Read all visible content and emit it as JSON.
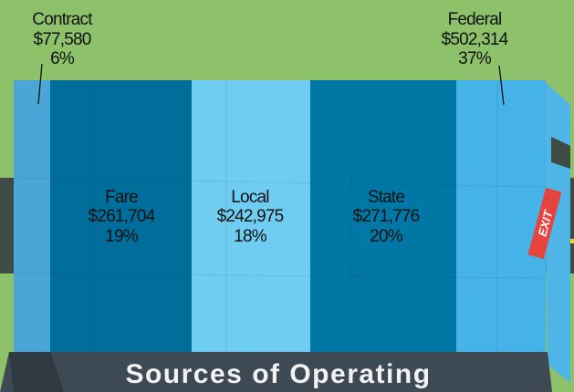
{
  "title": "Sources of Operating",
  "exit_sign": "EXIT",
  "segments": [
    {
      "label": "Contract",
      "amount": "$77,580",
      "percent": "6%"
    },
    {
      "label": "Fare",
      "amount": "$261,704",
      "percent": "19%"
    },
    {
      "label": "Local",
      "amount": "$242,975",
      "percent": "18%"
    },
    {
      "label": "State",
      "amount": "$271,776",
      "percent": "20%"
    },
    {
      "label": "Federal",
      "amount": "$502,314",
      "percent": "37%"
    }
  ]
}
